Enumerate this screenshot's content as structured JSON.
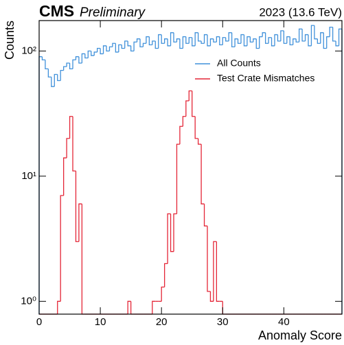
{
  "chart_data": {
    "type": "histogram",
    "title": "CMS",
    "subtitle": "Preliminary",
    "annotation": "2023 (13.6 TeV)",
    "xlabel": "Anomaly Score",
    "ylabel": "Counts",
    "log_y": true,
    "legend": "upper right",
    "bins": [
      0,
      0.5,
      1,
      1.5,
      2,
      2.5,
      3,
      3.5,
      4,
      4.5,
      5,
      5.5,
      6,
      6.5,
      7,
      7.5,
      8,
      8.5,
      9,
      9.5,
      10,
      10.5,
      11,
      11.5,
      12,
      12.5,
      13,
      13.5,
      14,
      14.5,
      15,
      15.5,
      16,
      16.5,
      17,
      17.5,
      18,
      18.5,
      19,
      19.5,
      20,
      20.5,
      21,
      21.5,
      22,
      22.5,
      23,
      23.5,
      24,
      24.5,
      25,
      25.5,
      26,
      26.5,
      27,
      27.5,
      28,
      28.5,
      29,
      29.5,
      30,
      30.5,
      31,
      31.5,
      32,
      32.5,
      33,
      33.5,
      34,
      34.5,
      35,
      35.5,
      36,
      36.5,
      37,
      37.5,
      38,
      38.5,
      39,
      39.5,
      40,
      40.5,
      41,
      41.5,
      42,
      42.5,
      43,
      43.5,
      44,
      44.5,
      45,
      45.5,
      46,
      46.5,
      47,
      47.5,
      48,
      48.5,
      49,
      49.5
    ],
    "series": [
      {
        "name": "All Counts",
        "color": "#3f90da",
        "values": [
          90,
          85,
          72,
          62,
          52,
          65,
          58,
          70,
          75,
          80,
          72,
          85,
          90,
          80,
          95,
          88,
          100,
          92,
          98,
          105,
          95,
          110,
          100,
          108,
          115,
          98,
          112,
          105,
          120,
          110,
          100,
          118,
          125,
          108,
          115,
          130,
          112,
          120,
          105,
          135,
          115,
          125,
          110,
          140,
          118,
          125,
          105,
          130,
          115,
          128,
          110,
          140,
          120,
          115,
          135,
          110,
          125,
          118,
          130,
          112,
          128,
          120,
          140,
          108,
          125,
          115,
          135,
          110,
          130,
          118,
          125,
          105,
          130,
          140,
          115,
          128,
          110,
          135,
          120,
          145,
          115,
          130,
          112,
          125,
          118,
          150,
          120,
          135,
          110,
          160,
          125,
          115,
          140,
          105,
          130,
          155,
          120,
          110,
          150
        ]
      },
      {
        "name": "Test Crate Mismatches",
        "color": "#e42536",
        "values": [
          0,
          0,
          0,
          0,
          0,
          0,
          1,
          7,
          14,
          20,
          30,
          11,
          3,
          6,
          0,
          0,
          0,
          0,
          0,
          0,
          0,
          0,
          0,
          0,
          0,
          0,
          0,
          0,
          0,
          1,
          0,
          0,
          0,
          0,
          0,
          0,
          0,
          1,
          1,
          1,
          1.3,
          2,
          5,
          2.5,
          5,
          18,
          25,
          30,
          40,
          48,
          30,
          20,
          18,
          6,
          4,
          1.2,
          1,
          3,
          1,
          1,
          0,
          0,
          0,
          0,
          0,
          0,
          0,
          0,
          0,
          0,
          0,
          0,
          0,
          0,
          0,
          0,
          0,
          0,
          0,
          0,
          0,
          0,
          0,
          0,
          0,
          0,
          0,
          0,
          0,
          0,
          0,
          0,
          0,
          0,
          0,
          0,
          0,
          0,
          0
        ]
      }
    ],
    "xlim": [
      0,
      49.5
    ],
    "xticks": [
      0,
      10,
      20,
      30,
      40
    ],
    "ylim": [
      0.79,
      175
    ],
    "yticks": [
      {
        "value": 1,
        "label": "10⁰"
      },
      {
        "value": 10,
        "label": "10¹"
      },
      {
        "value": 100,
        "label": "10²"
      }
    ]
  }
}
